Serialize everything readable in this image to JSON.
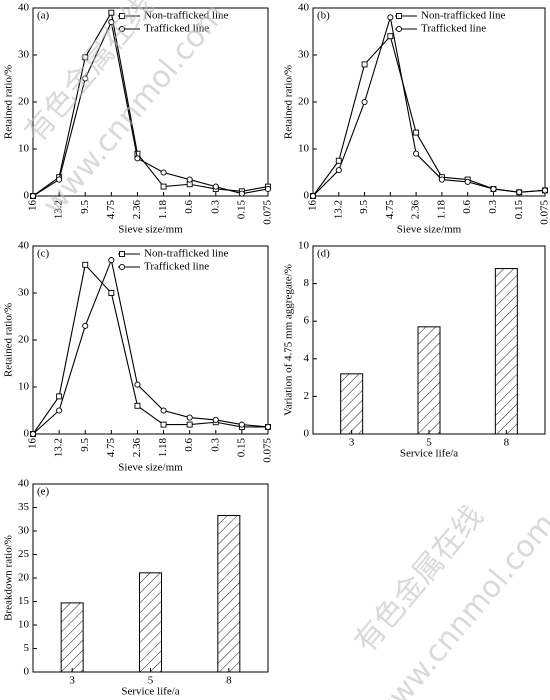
{
  "chart_data": [
    {
      "type": "line",
      "label": "(a)",
      "xlabel": "Sieve size/mm",
      "ylabel": "Retained ratio/%",
      "categories": [
        "16",
        "13.2",
        "9.5",
        "4.75",
        "2.36",
        "1.18",
        "0.6",
        "0.3",
        "0.15",
        "0.075"
      ],
      "series": [
        {
          "name": "Non-trafficked line",
          "marker": "square",
          "color": "#000",
          "values": [
            0,
            4,
            29.5,
            39,
            9,
            2,
            2.5,
            1.5,
            1,
            2
          ]
        },
        {
          "name": "Trafficked line",
          "marker": "circle",
          "color": "#000",
          "values": [
            0,
            3.5,
            25,
            37,
            8,
            5,
            3.5,
            2,
            0.5,
            1.5
          ]
        }
      ],
      "ylim": [
        0,
        40
      ],
      "yticks": [
        0,
        10,
        20,
        30,
        40
      ],
      "legend": "top-right"
    },
    {
      "type": "line",
      "label": "(b)",
      "xlabel": "Sieve size/mm",
      "ylabel": "Retained ratio/%",
      "categories": [
        "16",
        "13.2",
        "9.5",
        "4.75",
        "2.36",
        "1.18",
        "0.6",
        "0.3",
        "0.15",
        "0.075"
      ],
      "series": [
        {
          "name": "Non-trafficked line",
          "marker": "square",
          "color": "#000",
          "values": [
            0,
            7.5,
            28,
            34,
            13.5,
            4,
            3.5,
            1.5,
            0.8,
            1.2
          ]
        },
        {
          "name": "Trafficked line",
          "marker": "circle",
          "color": "#000",
          "values": [
            0,
            5.5,
            20,
            38,
            9,
            3.5,
            3,
            1.5,
            0.8,
            1.2
          ]
        }
      ],
      "ylim": [
        0,
        40
      ],
      "yticks": [
        0,
        10,
        20,
        30,
        40
      ],
      "legend": "top-right"
    },
    {
      "type": "line",
      "label": "(c)",
      "xlabel": "Sieve size/mm",
      "ylabel": "Retained ratio/%",
      "categories": [
        "16",
        "13.2",
        "9.5",
        "4.75",
        "2.36",
        "1.18",
        "0.6",
        "0.3",
        "0.15",
        "0.075"
      ],
      "series": [
        {
          "name": "Non-trafficked line",
          "marker": "square",
          "color": "#000",
          "values": [
            0,
            8,
            36,
            30,
            6,
            2,
            2,
            2.5,
            1.5,
            1.5
          ]
        },
        {
          "name": "Trafficked line",
          "marker": "circle",
          "color": "#000",
          "values": [
            0,
            5,
            23,
            37,
            10.5,
            5,
            3.5,
            3,
            2,
            1.5
          ]
        }
      ],
      "ylim": [
        0,
        40
      ],
      "yticks": [
        0,
        10,
        20,
        30,
        40
      ],
      "legend": "top-right"
    },
    {
      "type": "bar",
      "label": "(d)",
      "xlabel": "Service life/a",
      "ylabel": "Variation of 4.75 mm aggregate/%",
      "categories": [
        "3",
        "5",
        "8"
      ],
      "values": [
        3.2,
        5.7,
        8.8
      ],
      "color": "#000",
      "hatch": true,
      "ylim": [
        0,
        10
      ],
      "yticks": [
        0,
        2,
        4,
        6,
        8,
        10
      ]
    },
    {
      "type": "bar",
      "label": "(e)",
      "xlabel": "Service life/a",
      "ylabel": "Breakdown ratio/%",
      "categories": [
        "3",
        "5",
        "8"
      ],
      "values": [
        14.7,
        21.1,
        33.3
      ],
      "color": "#000",
      "hatch": true,
      "ylim": [
        0,
        40
      ],
      "yticks": [
        0,
        5,
        10,
        15,
        20,
        25,
        30,
        35,
        40
      ]
    }
  ],
  "watermark": [
    "有色金属在线",
    "www.cnnmol.com"
  ]
}
